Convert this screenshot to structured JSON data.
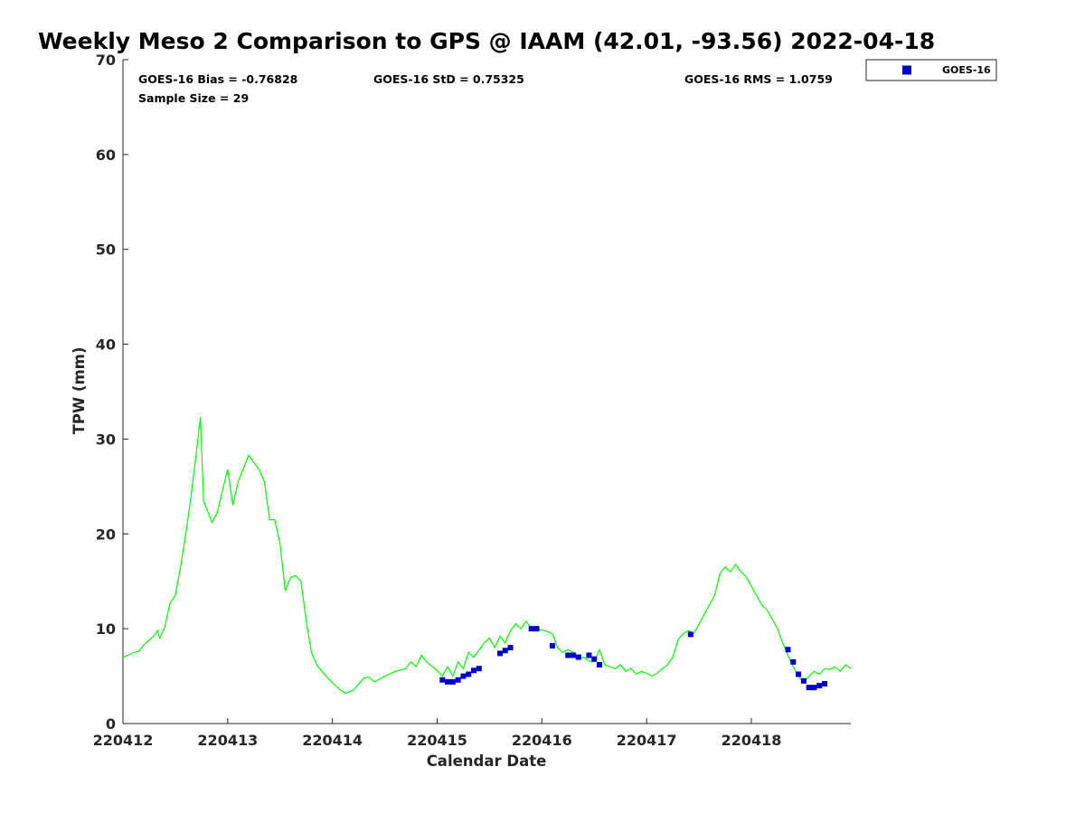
{
  "chart_data": {
    "type": "scatter",
    "title": "Weekly Meso 2 Comparison to GPS @ IAAM (42.01, -93.56) 2022-04-18",
    "xlabel": "Calendar Date",
    "ylabel": "TPW (mm)",
    "x_unit": "days",
    "x_tick_labels": [
      "220412",
      "220413",
      "220414",
      "220415",
      "220416",
      "220417",
      "220418"
    ],
    "x_ticks": [
      0,
      1,
      2,
      3,
      4,
      5,
      6
    ],
    "xlim": [
      0,
      6.95
    ],
    "ylim": [
      0,
      70
    ],
    "y_ticks": [
      0,
      10,
      20,
      30,
      40,
      50,
      60,
      70
    ],
    "stats": {
      "bias": "GOES-16 Bias = -0.76828",
      "std": "GOES-16 StD = 0.75325",
      "rms": "GOES-16 RMS = 1.0759",
      "sample": "Sample Size = 29"
    },
    "legend": {
      "placement": "top-right, outside plot",
      "entries": [
        "GOES-16"
      ]
    },
    "series": [
      {
        "name": "",
        "kind": "line",
        "color": "#00ff00",
        "points": [
          [
            0.0,
            7.0
          ],
          [
            0.05,
            7.2
          ],
          [
            0.1,
            7.5
          ],
          [
            0.15,
            7.6
          ],
          [
            0.2,
            8.3
          ],
          [
            0.25,
            8.8
          ],
          [
            0.3,
            9.3
          ],
          [
            0.33,
            9.8
          ],
          [
            0.35,
            9.0
          ],
          [
            0.4,
            10.2
          ],
          [
            0.45,
            12.7
          ],
          [
            0.5,
            13.5
          ],
          [
            0.55,
            16.5
          ],
          [
            0.6,
            20.0
          ],
          [
            0.65,
            24.0
          ],
          [
            0.7,
            28.5
          ],
          [
            0.74,
            32.3
          ],
          [
            0.77,
            23.5
          ],
          [
            0.85,
            21.2
          ],
          [
            0.9,
            22.2
          ],
          [
            0.95,
            24.5
          ],
          [
            1.0,
            26.8
          ],
          [
            1.05,
            23.0
          ],
          [
            1.1,
            25.5
          ],
          [
            1.2,
            28.3
          ],
          [
            1.3,
            26.8
          ],
          [
            1.35,
            25.5
          ],
          [
            1.4,
            21.5
          ],
          [
            1.45,
            21.5
          ],
          [
            1.5,
            19.0
          ],
          [
            1.55,
            14.0
          ],
          [
            1.6,
            15.4
          ],
          [
            1.65,
            15.6
          ],
          [
            1.7,
            15.0
          ],
          [
            1.75,
            10.8
          ],
          [
            1.8,
            7.5
          ],
          [
            1.85,
            6.2
          ],
          [
            1.9,
            5.5
          ],
          [
            2.0,
            4.3
          ],
          [
            2.05,
            3.8
          ],
          [
            2.12,
            3.2
          ],
          [
            2.2,
            3.5
          ],
          [
            2.3,
            4.8
          ],
          [
            2.35,
            4.9
          ],
          [
            2.4,
            4.4
          ],
          [
            2.5,
            5.0
          ],
          [
            2.6,
            5.5
          ],
          [
            2.7,
            5.8
          ],
          [
            2.75,
            6.5
          ],
          [
            2.8,
            6.0
          ],
          [
            2.85,
            7.2
          ],
          [
            2.9,
            6.5
          ],
          [
            3.0,
            5.6
          ],
          [
            3.05,
            5.0
          ],
          [
            3.1,
            6.0
          ],
          [
            3.15,
            5.0
          ],
          [
            3.2,
            6.5
          ],
          [
            3.25,
            5.8
          ],
          [
            3.3,
            7.5
          ],
          [
            3.35,
            7.0
          ],
          [
            3.45,
            8.5
          ],
          [
            3.5,
            9.0
          ],
          [
            3.55,
            8.0
          ],
          [
            3.6,
            9.2
          ],
          [
            3.65,
            8.5
          ],
          [
            3.7,
            9.8
          ],
          [
            3.75,
            10.5
          ],
          [
            3.8,
            10.0
          ],
          [
            3.85,
            10.8
          ],
          [
            3.9,
            10.0
          ],
          [
            3.95,
            9.8
          ],
          [
            4.0,
            9.9
          ],
          [
            4.05,
            9.7
          ],
          [
            4.1,
            9.5
          ],
          [
            4.15,
            8.0
          ],
          [
            4.2,
            7.5
          ],
          [
            4.25,
            7.8
          ],
          [
            4.3,
            7.5
          ],
          [
            4.35,
            6.8
          ],
          [
            4.4,
            7.0
          ],
          [
            4.45,
            6.6
          ],
          [
            4.5,
            6.5
          ],
          [
            4.55,
            7.8
          ],
          [
            4.6,
            6.2
          ],
          [
            4.65,
            6.0
          ],
          [
            4.7,
            5.8
          ],
          [
            4.75,
            6.2
          ],
          [
            4.8,
            5.5
          ],
          [
            4.85,
            5.8
          ],
          [
            4.9,
            5.2
          ],
          [
            4.95,
            5.5
          ],
          [
            5.0,
            5.3
          ],
          [
            5.05,
            5.0
          ],
          [
            5.1,
            5.3
          ],
          [
            5.15,
            5.8
          ],
          [
            5.2,
            6.2
          ],
          [
            5.25,
            7.0
          ],
          [
            5.3,
            8.8
          ],
          [
            5.35,
            9.5
          ],
          [
            5.4,
            9.8
          ],
          [
            5.45,
            9.5
          ],
          [
            5.5,
            10.5
          ],
          [
            5.55,
            11.5
          ],
          [
            5.6,
            12.5
          ],
          [
            5.65,
            13.5
          ],
          [
            5.7,
            15.8
          ],
          [
            5.75,
            16.5
          ],
          [
            5.8,
            16.0
          ],
          [
            5.85,
            16.8
          ],
          [
            5.9,
            16.0
          ],
          [
            5.95,
            15.5
          ],
          [
            6.0,
            14.5
          ],
          [
            6.05,
            13.5
          ],
          [
            6.1,
            12.5
          ],
          [
            6.15,
            12.0
          ],
          [
            6.2,
            11.0
          ],
          [
            6.25,
            10.0
          ],
          [
            6.3,
            8.5
          ],
          [
            6.35,
            7.2
          ],
          [
            6.4,
            6.0
          ],
          [
            6.45,
            5.0
          ],
          [
            6.5,
            4.3
          ],
          [
            6.55,
            5.0
          ],
          [
            6.6,
            5.5
          ],
          [
            6.65,
            5.2
          ],
          [
            6.7,
            5.8
          ],
          [
            6.75,
            5.7
          ],
          [
            6.8,
            6.0
          ],
          [
            6.85,
            5.5
          ],
          [
            6.9,
            6.2
          ],
          [
            6.95,
            5.8
          ]
        ]
      },
      {
        "name": "GOES-16",
        "kind": "scatter",
        "color": "#0000cc",
        "points": [
          [
            3.05,
            4.6
          ],
          [
            3.1,
            4.4
          ],
          [
            3.15,
            4.4
          ],
          [
            3.2,
            4.6
          ],
          [
            3.25,
            5.0
          ],
          [
            3.3,
            5.2
          ],
          [
            3.35,
            5.6
          ],
          [
            3.4,
            5.8
          ],
          [
            3.6,
            7.4
          ],
          [
            3.65,
            7.7
          ],
          [
            3.7,
            8.0
          ],
          [
            3.9,
            10.0
          ],
          [
            3.95,
            10.0
          ],
          [
            4.1,
            8.2
          ],
          [
            4.25,
            7.2
          ],
          [
            4.3,
            7.2
          ],
          [
            4.35,
            7.0
          ],
          [
            4.45,
            7.2
          ],
          [
            4.5,
            6.8
          ],
          [
            4.55,
            6.2
          ],
          [
            5.42,
            9.4
          ],
          [
            6.35,
            7.8
          ],
          [
            6.4,
            6.5
          ],
          [
            6.45,
            5.2
          ],
          [
            6.5,
            4.5
          ],
          [
            6.55,
            3.8
          ],
          [
            6.6,
            3.8
          ],
          [
            6.65,
            4.0
          ],
          [
            6.7,
            4.2
          ]
        ]
      }
    ]
  }
}
